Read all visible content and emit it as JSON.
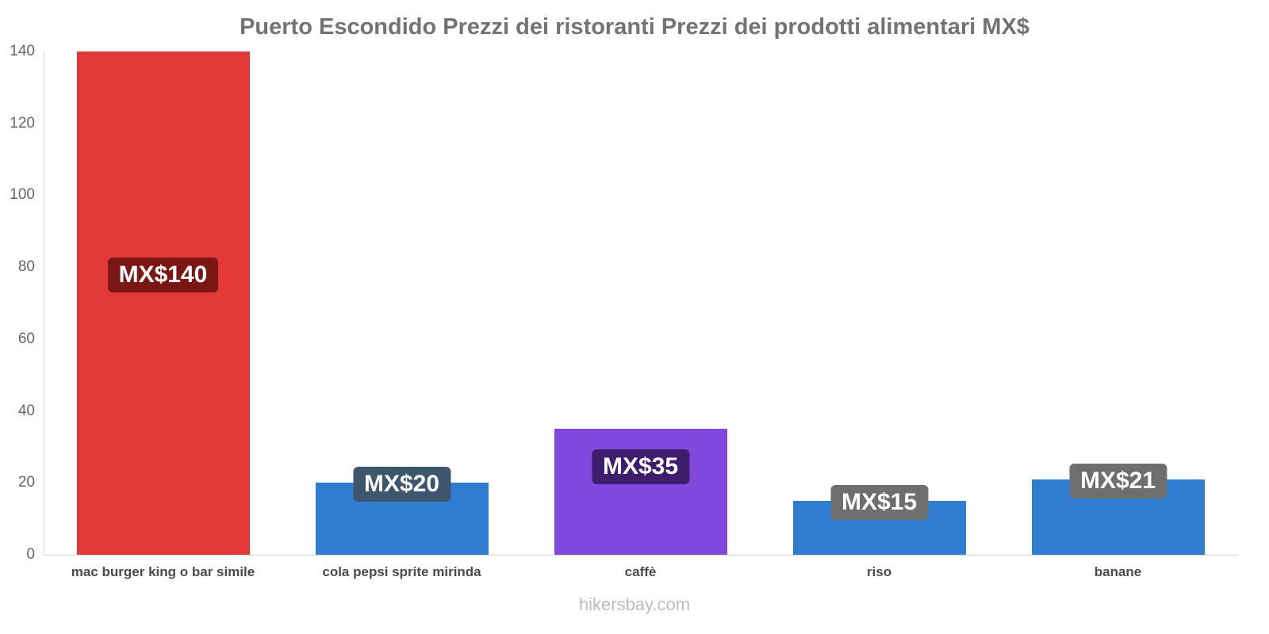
{
  "title": "Puerto Escondido Prezzi dei ristoranti Prezzi dei prodotti alimentari MX$",
  "footer": "hikersbay.com",
  "chart_data": {
    "type": "bar",
    "title": "Puerto Escondido Prezzi dei ristoranti Prezzi dei prodotti alimentari MX$",
    "categories": [
      "mac burger king o bar simile",
      "cola pepsi sprite mirinda",
      "caffè",
      "riso",
      "banane"
    ],
    "values": [
      140,
      20,
      35,
      15,
      21
    ],
    "value_labels": [
      "MX$140",
      "MX$20",
      "MX$35",
      "MX$15",
      "MX$21"
    ],
    "bar_colors": [
      "#e23837",
      "#2e7dd1",
      "#8149db",
      "#2e7dd1",
      "#2e7dd1"
    ],
    "label_box_colors": [
      "#7a1715",
      "#3d566e",
      "#3f1d6e",
      "#6e6e6e",
      "#6e6e6e"
    ],
    "xlabel": "",
    "ylabel": "",
    "ylim": [
      0,
      140
    ],
    "yticks": [
      0,
      20,
      40,
      60,
      80,
      100,
      120,
      140
    ],
    "grid": false,
    "legend": false,
    "currency": "MX$"
  }
}
